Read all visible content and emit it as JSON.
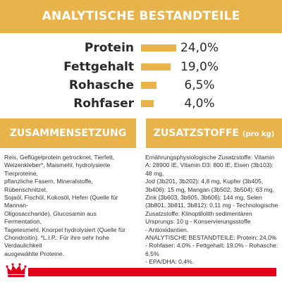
{
  "header": {
    "title": "ANALYTISCHE BESTANDTEILE"
  },
  "analysis": [
    {
      "label": "Protein",
      "value": "24,0%",
      "level": 24.0
    },
    {
      "label": "Fettgehalt",
      "value": "19,0%",
      "level": 19.0
    },
    {
      "label": "Rohasche",
      "value": "6,5%",
      "level": 6.5
    },
    {
      "label": "Rohfaser",
      "value": "4,0%",
      "level": 4.0
    }
  ],
  "sections": {
    "left_title": "ZUSAMMENSETZUNG",
    "right_title": "ZUSATZSTOFFE",
    "right_title_sub": "(pro kg)"
  },
  "composition": {
    "lines": [
      "Reis, Geflügelprotein getrocknet, Tierfett,",
      "Weizenkleber*, Maismehl, hydrolysierte Tierproteine,",
      "pflanzliche Fasern, Mineralstoffe, Rübenschnitzel,",
      "Sojaöl, Fischöl, Kokosöl, Hefen (Quelle für Mannan-",
      "Oligosaccharide), Glucosamin aus Fermentation,",
      "Tagetesmehl, Knorpel hydrolysiert (Quelle für",
      "Chondroitin). *L.I.P.: Für ihre sehr hohe Verdaulichkeit",
      "ausgewählte Proteine."
    ]
  },
  "additives": {
    "lines": [
      "Ernährungsphysiologische Zusatzstoffe: Vitamin",
      "A: 28900 IE, Vitamin D3: 800 IE, Eisen (3b103): 48 mg,",
      "Jod (3b201, 3b202): 4,8 mg, Kupfer (3b405,",
      "3b406): 15 mg, Mangan (3b502, 3b504): 63 mg,",
      "Zink (3b603, 3b605, 3b606): 144 mg, Selen",
      "(3b801, 3b811, 3b812): 0,11 mg - Technologische",
      "Zusatzstoffe: Klinoptilolith sedimentären",
      "Ursprungs: 10 g - Konservierungsstoffe",
      "- Antioxidantien.",
      "ANALYTISCHE BESTANDTEILE: Protein: 24,0%",
      "- Rohfaser: 4,0% - Fettgehalt: 19,0% - Rohasche: 6,5%",
      "- EPA/DHA: 0,4%."
    ]
  },
  "colors": {
    "accent": "#e8b34a",
    "brand_red": "#e2001a"
  },
  "logo": {
    "icon": "royal-crown-icon"
  }
}
